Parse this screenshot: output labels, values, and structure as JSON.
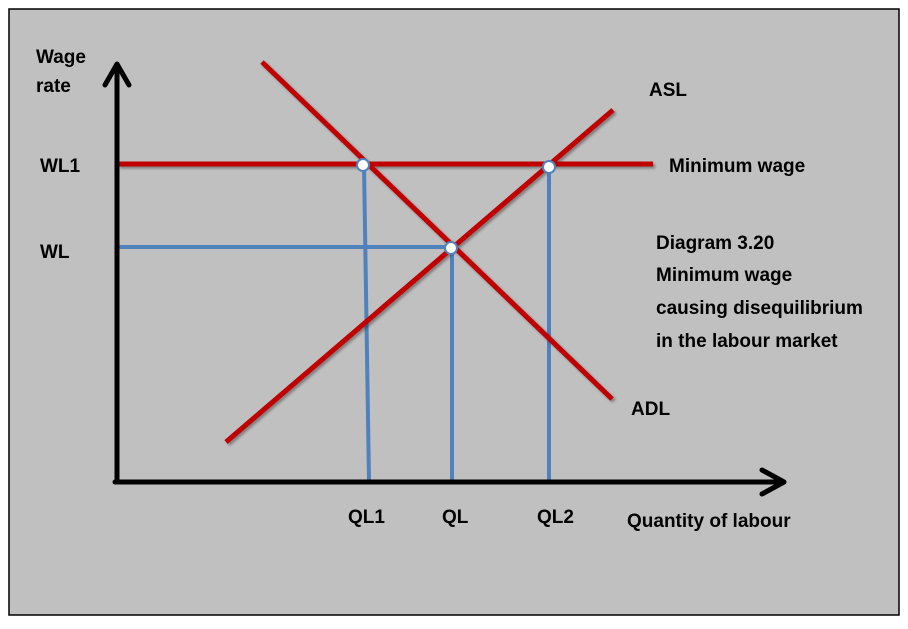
{
  "y_axis_label": [
    "Wage",
    "rate"
  ],
  "x_axis_label": "Quantity of labour",
  "curves": {
    "supply": "ASL",
    "demand": "ADL",
    "minimum_wage": "Minimum wage"
  },
  "y_ticks": {
    "wl1": "WL1",
    "wl": "WL"
  },
  "x_ticks": {
    "ql1": "QL1",
    "ql": "QL",
    "ql2": "QL2"
  },
  "caption": [
    "Diagram 3.20",
    "Minimum wage",
    "causing disequilibrium",
    "in the labour market"
  ],
  "colors": {
    "background": "#c0c0c0",
    "curve": "#c00000",
    "guide": "#4f81bd",
    "axis": "#000000"
  }
}
